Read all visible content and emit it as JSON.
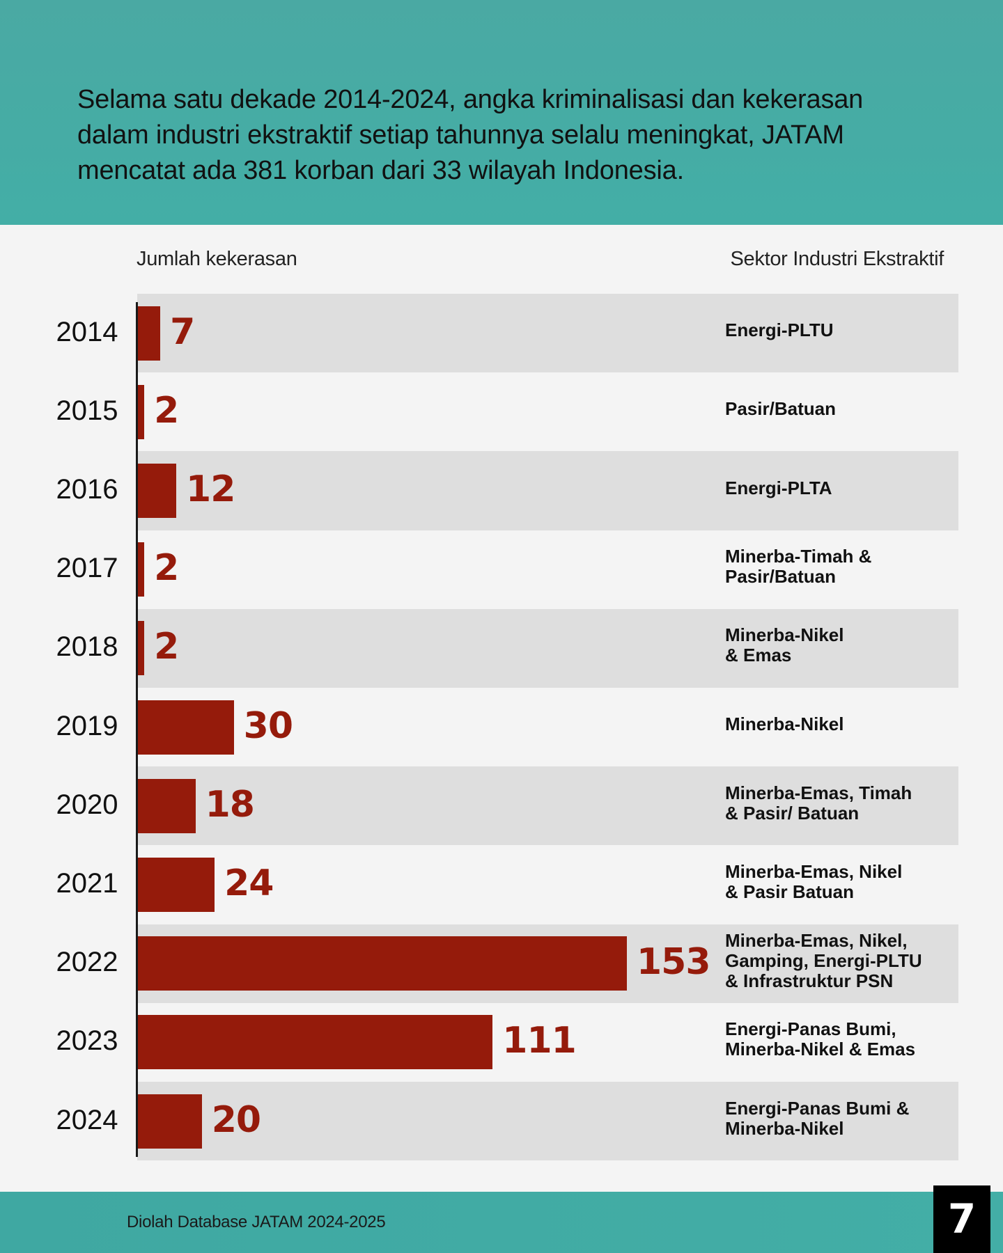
{
  "header": {
    "text": "Selama satu dekade 2014-2024, angka kriminalisasi dan kekerasan dalam industri ekstraktif setiap tahunnya selalu meningkat, JATAM mencatat ada 381 korban dari 33 wilayah Indonesia."
  },
  "columns": {
    "left": "Jumlah kekerasan",
    "right": "Sektor Industri Ekstraktif"
  },
  "chart_data": {
    "type": "bar",
    "orientation": "horizontal",
    "categories": [
      "2014",
      "2015",
      "2016",
      "2017",
      "2018",
      "2019",
      "2020",
      "2021",
      "2022",
      "2023",
      "2024"
    ],
    "values": [
      7,
      2,
      12,
      2,
      2,
      30,
      18,
      24,
      153,
      111,
      20
    ],
    "sectors": [
      "Energi-PLTU",
      "Pasir/Batuan",
      "Energi-PLTA",
      "Minerba-Timah &\nPasir/Batuan",
      "Minerba-Nikel\n& Emas",
      "Minerba-Nikel",
      "Minerba-Emas, Timah\n& Pasir/ Batuan",
      "Minerba-Emas, Nikel\n& Pasir Batuan",
      "Minerba-Emas, Nikel,\nGamping, Energi-PLTU\n& Infrastruktur PSN",
      "Energi-Panas Bumi,\nMinerba-Nikel & Emas",
      "Energi-Panas Bumi &\nMinerba-Nikel"
    ],
    "xlim": [
      0,
      153
    ],
    "colors": {
      "bar": "#951b0b",
      "shade": "#dedede",
      "accent": "#43aea6"
    }
  },
  "footer": {
    "source": "Diolah Database JATAM 2024-2025",
    "page": "7"
  }
}
